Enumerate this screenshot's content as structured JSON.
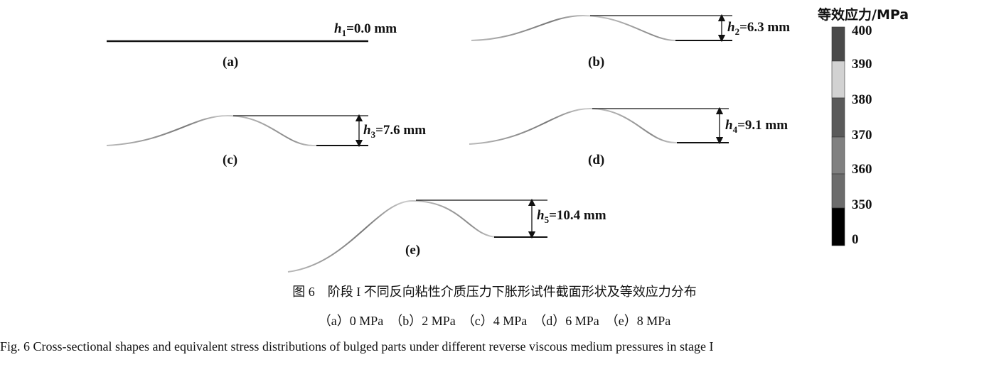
{
  "panels": [
    {
      "label": "(a)",
      "h_symbol": "h",
      "h_index": "1",
      "h_text": "=0.0 mm",
      "pressure": "0 MPa"
    },
    {
      "label": "(b)",
      "h_symbol": "h",
      "h_index": "2",
      "h_text": "=6.3 mm",
      "pressure": "2 MPa"
    },
    {
      "label": "(c)",
      "h_symbol": "h",
      "h_index": "3",
      "h_text": "=7.6 mm",
      "pressure": "4 MPa"
    },
    {
      "label": "(d)",
      "h_symbol": "h",
      "h_index": "4",
      "h_text": "=9.1 mm",
      "pressure": "6 MPa"
    },
    {
      "label": "(e)",
      "h_symbol": "h",
      "h_index": "5",
      "h_text": "=10.4 mm",
      "pressure": "8 MPa"
    }
  ],
  "colorbar": {
    "title": "等效应力/MPa",
    "ticks": [
      "400",
      "390",
      "380",
      "370",
      "360",
      "350",
      "0"
    ],
    "segment_colors": [
      "#4a4a4a",
      "#d2d2d2",
      "#5a5a5a",
      "#808080",
      "#6c6c6c",
      "#000000"
    ]
  },
  "caption": {
    "zh": "图 6　阶段 I 不同反向粘性介质压力下胀形试件截面形状及等效应力分布",
    "sub": "（a）0 MPa　（b）2 MPa　（c）4 MPa　（d）6 MPa　（e）8 MPa",
    "en": "Fig. 6   Cross-sectional shapes and equivalent stress distributions of bulged parts under different reverse viscous medium pressures in stage  I"
  }
}
